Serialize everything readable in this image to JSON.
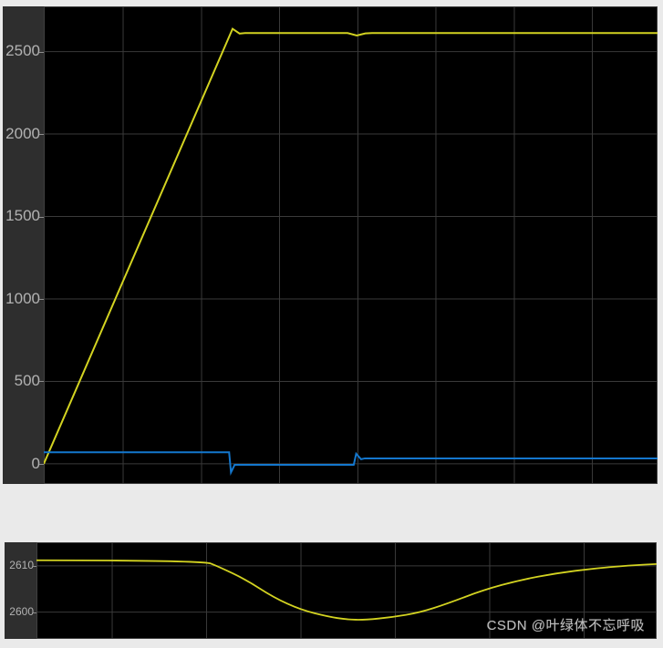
{
  "window": {
    "background": "#eaeaea"
  },
  "colors": {
    "plot_bg": "#000000",
    "axis_panel": "#2e2e2e",
    "grid": "#3a3a3a",
    "border": "#3f3f3f",
    "tick_label": "#b2b2b2",
    "tick_mark": "#8f8f8f",
    "yellow": "#d3d321",
    "blue": "#1477cd",
    "watermark": "#bcbcbc"
  },
  "watermark": {
    "text": "CSDN @叶绿体不忘呼吸"
  },
  "chart_data": [
    {
      "id": "scope-main",
      "type": "line",
      "title": "",
      "xlabel": "",
      "ylabel": "",
      "xlim": [
        0,
        100
      ],
      "ylim": [
        -122,
        2774
      ],
      "grid": true,
      "legend": "none",
      "x_gridlines": [
        12.93,
        25.71,
        38.41,
        51.19,
        63.89,
        76.67,
        89.38
      ],
      "yticks": [
        {
          "value": 0,
          "label": "0"
        },
        {
          "value": 500,
          "label": "500"
        },
        {
          "value": 1000,
          "label": "1000"
        },
        {
          "value": 1500,
          "label": "1500"
        },
        {
          "value": 2000,
          "label": "2000"
        },
        {
          "value": 2500,
          "label": "2500"
        }
      ],
      "series": [
        {
          "name": "yellow-signal-speed",
          "color": "yellow",
          "smooth": false,
          "points": [
            [
              0,
              0
            ],
            [
              30.76,
              2638
            ],
            [
              31.9,
              2609
            ],
            [
              32.8,
              2612
            ],
            [
              49.5,
              2612
            ],
            [
              51.0,
              2597
            ],
            [
              52.4,
              2610
            ],
            [
              53.5,
              2612
            ],
            [
              100,
              2612
            ]
          ]
        },
        {
          "name": "blue-signal-current",
          "color": "blue",
          "smooth": false,
          "points": [
            [
              0,
              70
            ],
            [
              30.2,
              70
            ],
            [
              30.5,
              -52
            ],
            [
              31.1,
              -6
            ],
            [
              50.5,
              -6
            ],
            [
              50.9,
              61
            ],
            [
              51.7,
              28
            ],
            [
              52.3,
              33
            ],
            [
              100,
              33
            ]
          ]
        }
      ]
    },
    {
      "id": "scope-zoom-detail",
      "type": "line",
      "title": "",
      "xlabel": "",
      "ylabel": "",
      "xlim": [
        0,
        100
      ],
      "ylim": [
        2594.2,
        2615.1
      ],
      "grid": true,
      "legend": "none",
      "x_gridlines": [
        12.21,
        27.43,
        42.65,
        57.87,
        73.09,
        88.31
      ],
      "yticks": [
        {
          "value": 2600,
          "label": "2600"
        },
        {
          "value": 2610,
          "label": "2610"
        }
      ],
      "series": [
        {
          "name": "yellow-signal-speed-zoom",
          "color": "yellow",
          "smooth": true,
          "points": [
            [
              0,
              2611.2
            ],
            [
              26.8,
              2611.2
            ],
            [
              29.4,
              2609.8
            ],
            [
              33.8,
              2607.0
            ],
            [
              38.2,
              2603.2
            ],
            [
              42.6,
              2600.5
            ],
            [
              47.1,
              2599.0
            ],
            [
              50.0,
              2598.4
            ],
            [
              52.9,
              2598.3
            ],
            [
              57.4,
              2598.9
            ],
            [
              61.8,
              2599.9
            ],
            [
              66.2,
              2601.8
            ],
            [
              72.1,
              2604.8
            ],
            [
              77.9,
              2606.9
            ],
            [
              83.8,
              2608.4
            ],
            [
              89.7,
              2609.4
            ],
            [
              95.6,
              2610.1
            ],
            [
              100,
              2610.4
            ]
          ]
        }
      ]
    }
  ]
}
